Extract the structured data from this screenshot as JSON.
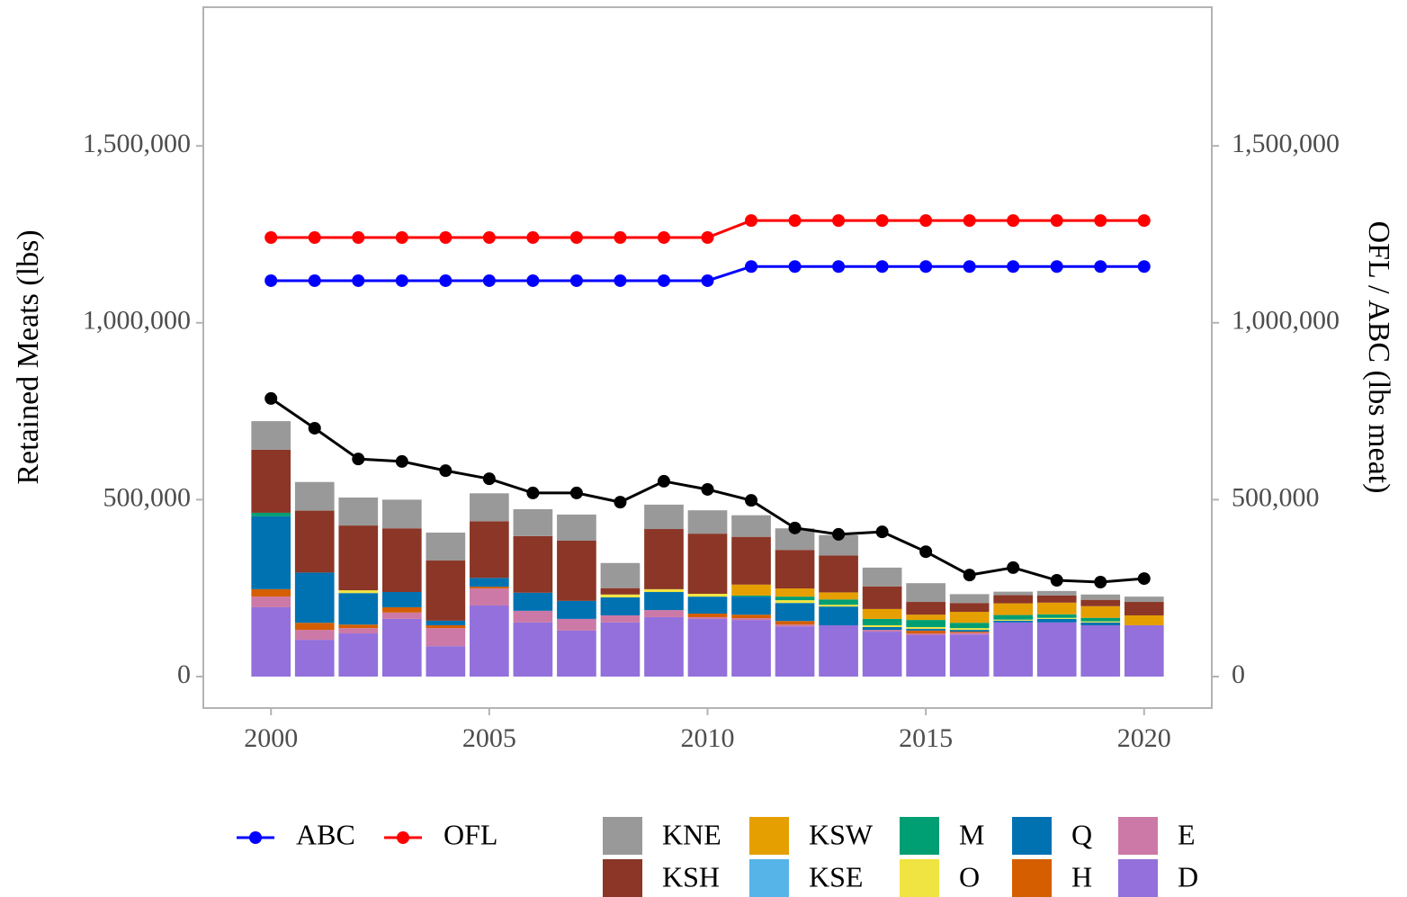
{
  "chart_data": {
    "type": "bar",
    "y_label": "Retained Meats (lbs)",
    "y2_label": "OFL / ABC (lbs meat)",
    "x": [
      2000,
      2001,
      2002,
      2003,
      2004,
      2005,
      2006,
      2007,
      2008,
      2009,
      2010,
      2011,
      2012,
      2013,
      2014,
      2015,
      2016,
      2017,
      2018,
      2019,
      2020
    ],
    "xlim": [
      1998.45,
      2021.55
    ],
    "xticks": [
      2000,
      2005,
      2010,
      2015,
      2020
    ],
    "ylim": [
      -89000,
      1892000
    ],
    "yticks": [
      0,
      {
        "value": 500000,
        "label": "500,000"
      },
      {
        "value": 1000000,
        "label": "1,000,000"
      },
      {
        "value": 1500000,
        "label": "1,500,000"
      }
    ],
    "y2lim": [
      -89000,
      1892000
    ],
    "y2ticks": [
      0,
      {
        "value": 500000,
        "label": "500,000"
      },
      {
        "value": 1000000,
        "label": "1,000,000"
      },
      {
        "value": 1500000,
        "label": "1,500,000"
      }
    ],
    "stacked": true,
    "series": [
      {
        "name": "D",
        "color": "#9370DB",
        "values": [
          196000,
          104000,
          122000,
          163000,
          86000,
          201000,
          153000,
          130000,
          153000,
          168000,
          163000,
          160000,
          142000,
          145000,
          127000,
          117000,
          119000,
          153000,
          153000,
          145000,
          145000
        ]
      },
      {
        "name": "E",
        "color": "#CC79A7",
        "values": [
          30000,
          28000,
          15000,
          18000,
          51000,
          48000,
          33000,
          33000,
          20000,
          20000,
          5000,
          5000,
          5000,
          0,
          5000,
          5000,
          5000,
          0,
          0,
          0,
          0
        ]
      },
      {
        "name": "H",
        "color": "#D55E00",
        "values": [
          21000,
          20000,
          10000,
          15000,
          8000,
          5000,
          0,
          0,
          0,
          0,
          10000,
          10000,
          10000,
          0,
          0,
          8000,
          3000,
          0,
          0,
          0,
          0
        ]
      },
      {
        "name": "Q",
        "color": "#0072B2",
        "values": [
          206000,
          142000,
          89000,
          43000,
          13000,
          25000,
          51000,
          51000,
          51000,
          51000,
          48000,
          51000,
          51000,
          53000,
          8000,
          5000,
          5000,
          5000,
          10000,
          8000,
          0
        ]
      },
      {
        "name": "O",
        "color": "#F0E442",
        "values": [
          0,
          0,
          8000,
          0,
          0,
          0,
          0,
          0,
          8000,
          8000,
          8000,
          0,
          8000,
          5000,
          5000,
          5000,
          5000,
          3000,
          3000,
          3000,
          0
        ]
      },
      {
        "name": "M",
        "color": "#009E73",
        "values": [
          10000,
          0,
          0,
          0,
          0,
          0,
          0,
          0,
          0,
          0,
          0,
          3000,
          10000,
          15000,
          18000,
          20000,
          15000,
          13000,
          10000,
          10000,
          0
        ]
      },
      {
        "name": "KSE",
        "color": "#56B4E9",
        "values": [
          0,
          0,
          0,
          0,
          0,
          0,
          0,
          0,
          0,
          0,
          0,
          0,
          0,
          0,
          0,
          0,
          0,
          0,
          0,
          0,
          0
        ]
      },
      {
        "name": "KSW",
        "color": "#E69F00",
        "values": [
          0,
          0,
          0,
          0,
          0,
          0,
          0,
          0,
          0,
          0,
          0,
          31000,
          23000,
          20000,
          28000,
          15000,
          31000,
          33000,
          33000,
          33000,
          28000
        ]
      },
      {
        "name": "KSH",
        "color": "#8B3626",
        "values": [
          178000,
          175000,
          183000,
          180000,
          170000,
          160000,
          160000,
          170000,
          18000,
          170000,
          170000,
          135000,
          109000,
          104000,
          64000,
          36000,
          25000,
          23000,
          20000,
          18000,
          38000
        ]
      },
      {
        "name": "KNE",
        "color": "#999999",
        "values": [
          81000,
          81000,
          79000,
          81000,
          79000,
          79000,
          76000,
          74000,
          71000,
          69000,
          66000,
          61000,
          61000,
          58000,
          53000,
          53000,
          25000,
          10000,
          13000,
          15000,
          15000
        ]
      }
    ],
    "line_series": [
      {
        "color": "#000000",
        "axis": "y",
        "values": [
          786000,
          702000,
          615000,
          608000,
          582000,
          559000,
          519000,
          519000,
          493000,
          552000,
          529000,
          498000,
          420000,
          402000,
          409000,
          353000,
          287000,
          308000,
          272000,
          267000,
          277000
        ]
      },
      {
        "name": "ABC",
        "color": "#0000FF",
        "axis": "y2",
        "values": [
          1119000,
          1119000,
          1119000,
          1119000,
          1119000,
          1119000,
          1119000,
          1119000,
          1119000,
          1119000,
          1119000,
          1159000,
          1159000,
          1159000,
          1159000,
          1159000,
          1159000,
          1159000,
          1159000,
          1159000,
          1159000
        ]
      },
      {
        "name": "OFL",
        "color": "#FF0000",
        "axis": "y2",
        "values": [
          1241000,
          1241000,
          1241000,
          1241000,
          1241000,
          1241000,
          1241000,
          1241000,
          1241000,
          1241000,
          1241000,
          1289000,
          1289000,
          1289000,
          1289000,
          1289000,
          1289000,
          1289000,
          1289000,
          1289000,
          1289000
        ]
      }
    ]
  }
}
